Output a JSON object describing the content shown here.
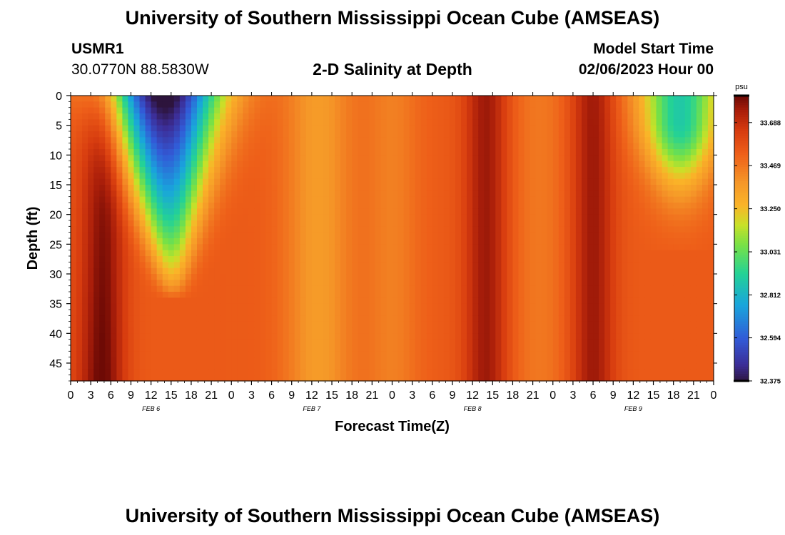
{
  "header": {
    "title": "University of Southern Mississippi Ocean Cube (AMSEAS)",
    "station_id": "USMR1",
    "coordinates": "30.0770N  88.5830W",
    "plot_title": "2-D Salinity at Depth",
    "model_label": "Model Start Time",
    "model_start": "02/06/2023 Hour 00"
  },
  "footer": {
    "title": "University of Southern Mississippi Ocean Cube (AMSEAS)"
  },
  "chart_data": {
    "type": "heatmap",
    "title": "2-D Salinity at Depth",
    "xlabel": "Forecast Time(Z)",
    "ylabel": "Depth (ft)",
    "x_range_hours": [
      0,
      96
    ],
    "y_range_ft": [
      0,
      48
    ],
    "x_tick_labels": [
      "0",
      "3",
      "6",
      "9",
      "12",
      "15",
      "18",
      "21",
      "0",
      "3",
      "6",
      "9",
      "12",
      "15",
      "18",
      "21",
      "0",
      "3",
      "6",
      "9",
      "12",
      "15",
      "18",
      "21",
      "0",
      "3",
      "6",
      "9",
      "12",
      "15",
      "18",
      "21",
      "0"
    ],
    "y_ticks": [
      0,
      5,
      10,
      15,
      20,
      25,
      30,
      35,
      40,
      45
    ],
    "y_tick_labels": [
      "0",
      "5",
      "10",
      "15",
      "20",
      "25",
      "30",
      "35",
      "40",
      "45"
    ],
    "date_labels": [
      {
        "text": "FEB 6",
        "hour": 12
      },
      {
        "text": "FEB 7",
        "hour": 36
      },
      {
        "text": "FEB 8",
        "hour": 60
      },
      {
        "text": "FEB 9",
        "hour": 84
      }
    ],
    "colorbar": {
      "unit": "psu",
      "min": 32.375,
      "max": 33.825,
      "tick_values": [
        33.688,
        33.469,
        33.25,
        33.031,
        32.812,
        32.594,
        32.375
      ],
      "tick_labels": [
        "33.688",
        "33.469",
        "33.250",
        "33.031",
        "32.812",
        "32.594",
        "32.375"
      ]
    },
    "field": {
      "base_psu": 33.55,
      "deep_band_amplitude": 0.1,
      "deep_band_period_hours": 24,
      "deep_band_peak_hours": [
        5,
        62,
        78
      ],
      "fresh_lens_1": {
        "center_hour": 14,
        "surface_min_psu": 32.38,
        "width_at_surface_hours": 6,
        "depth_extent_ft": 34
      },
      "fresh_lens_2": {
        "center_hour": 91,
        "surface_min_psu": 32.95,
        "width_at_surface_hours": 5,
        "depth_extent_ft": 16
      }
    }
  }
}
